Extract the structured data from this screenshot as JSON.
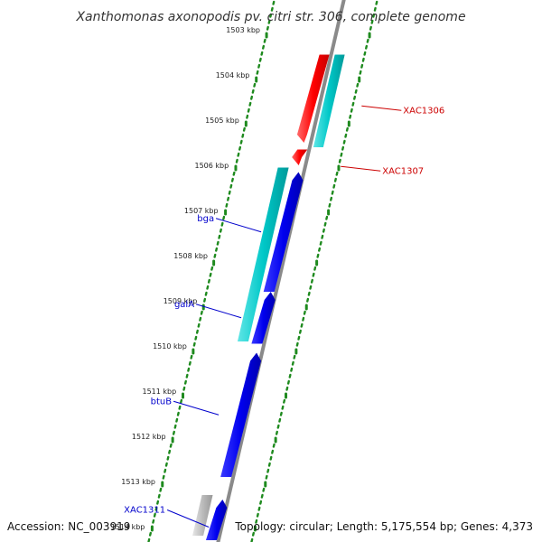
{
  "title": "Xanthomonas axonopodis pv. citri str. 306, complete genome",
  "footer": {
    "accession": "Accession: NC_003919",
    "summary": "Topology: circular; Length: 5,175,554 bp; Genes: 4,373"
  },
  "ruler": {
    "unit": "kbp",
    "ticks": [
      {
        "kbp": 1503,
        "label": "1503 kbp"
      },
      {
        "kbp": 1504,
        "label": "1504 kbp"
      },
      {
        "kbp": 1505,
        "label": "1505 kbp"
      },
      {
        "kbp": 1506,
        "label": "1506 kbp"
      },
      {
        "kbp": 1507,
        "label": "1507 kbp"
      },
      {
        "kbp": 1508,
        "label": "1508 kbp"
      },
      {
        "kbp": 1509,
        "label": "1509 kbp"
      },
      {
        "kbp": 1510,
        "label": "1510 kbp"
      },
      {
        "kbp": 1511,
        "label": "1511 kbp"
      },
      {
        "kbp": 1512,
        "label": "1512 kbp"
      },
      {
        "kbp": 1513,
        "label": "1513 kbp"
      },
      {
        "kbp": 1514,
        "label": "1514 kbp"
      }
    ]
  },
  "genes": [
    {
      "id": "XAC1306",
      "label": "XAC1306",
      "strand": "+",
      "start_kbp": 1503.55,
      "end_kbp": 1505.5,
      "color": "#ff0000",
      "label_color": "#cc0000",
      "show_label": true
    },
    {
      "id": "XAC1306-cds",
      "label": "",
      "strand": "+",
      "start_kbp": 1503.55,
      "end_kbp": 1505.6,
      "color": "#00c8c8",
      "track": "outer",
      "show_label": false
    },
    {
      "id": "XAC1307",
      "label": "XAC1307",
      "strand": "+",
      "start_kbp": 1505.65,
      "end_kbp": 1506.0,
      "color": "#ff0000",
      "label_color": "#cc0000",
      "show_label": true
    },
    {
      "id": "bga-cds",
      "label": "",
      "strand": "-",
      "start_kbp": 1506.05,
      "end_kbp": 1509.9,
      "color": "#00c8c8",
      "track": "inner",
      "show_label": false
    },
    {
      "id": "bga",
      "label": "bga",
      "strand": "-",
      "start_kbp": 1506.15,
      "end_kbp": 1508.8,
      "color": "#0000ee",
      "label_color": "#0000cc",
      "show_label": true
    },
    {
      "id": "galA",
      "label": "galA",
      "strand": "-",
      "start_kbp": 1508.8,
      "end_kbp": 1509.95,
      "color": "#0000ee",
      "label_color": "#0000cc",
      "show_label": true
    },
    {
      "id": "btuB",
      "label": "btuB",
      "strand": "-",
      "start_kbp": 1510.15,
      "end_kbp": 1512.9,
      "color": "#0000ee",
      "label_color": "#0000cc",
      "show_label": true
    },
    {
      "id": "XAC1311-pseudo",
      "label": "",
      "strand": "-",
      "start_kbp": 1513.3,
      "end_kbp": 1514.2,
      "color": "#bbbbbb",
      "track": "inner",
      "show_label": false
    },
    {
      "id": "XAC1311",
      "label": "XAC1311",
      "strand": "-",
      "start_kbp": 1513.4,
      "end_kbp": 1514.3,
      "color": "#0000ee",
      "label_color": "#0000cc",
      "show_label": true
    }
  ],
  "colors": {
    "backbone": "#8a8a8a",
    "ruler_dots": "#1e8a1e",
    "forward_gene": "#ff0000",
    "reverse_gene": "#0000ee",
    "cds": "#00c8c8",
    "pseudogene": "#bbbbbb"
  }
}
